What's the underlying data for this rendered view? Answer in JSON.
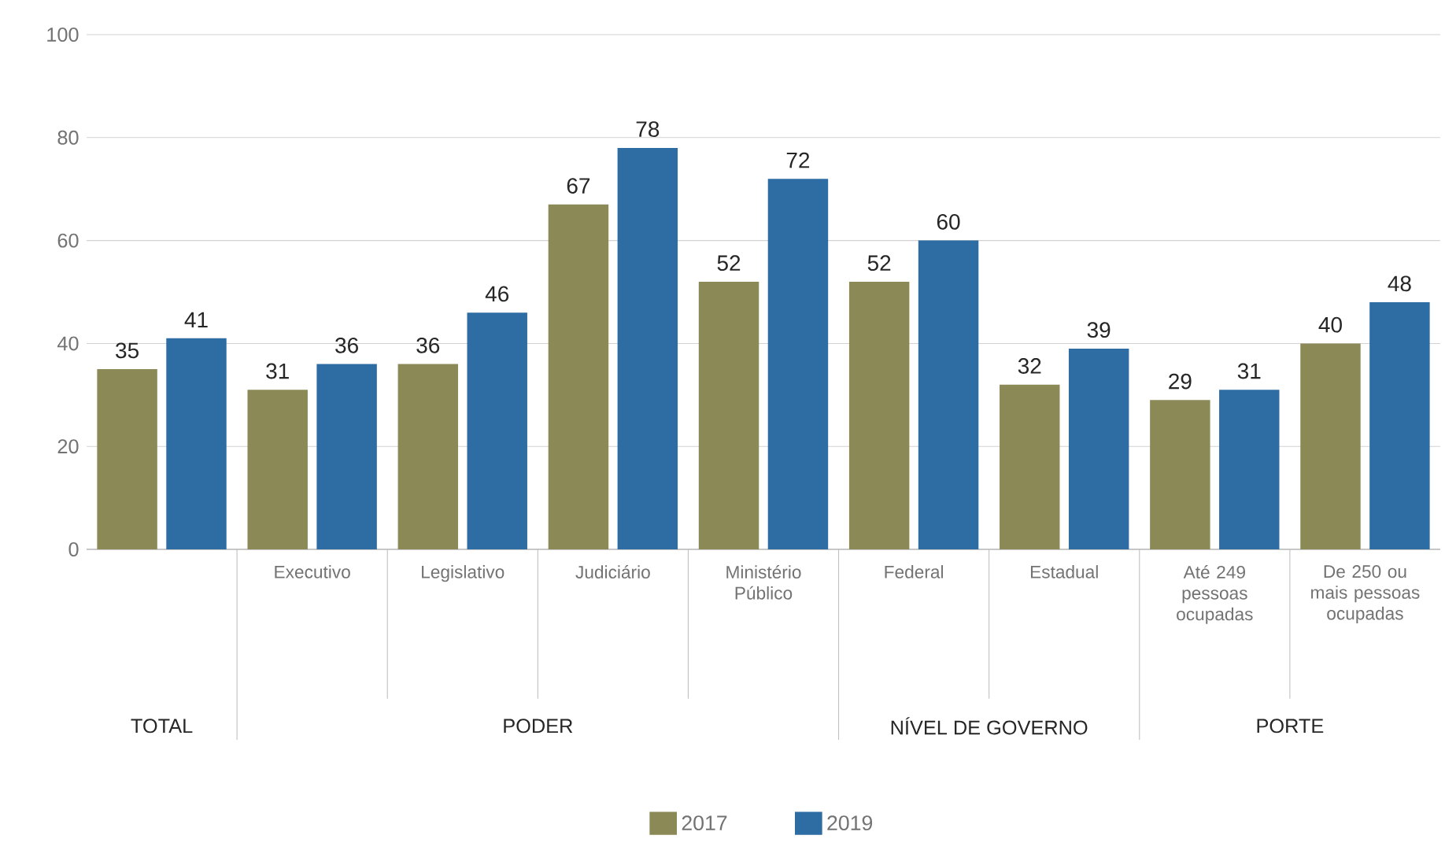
{
  "chart_data": {
    "type": "bar",
    "categories": [
      null,
      "Executivo",
      "Legislativo",
      "Judiciário",
      "Ministério Público",
      "Federal",
      "Estadual",
      "Até 249 pessoas ocupadas",
      "De 250 ou mais pessoas ocupadas"
    ],
    "series": [
      {
        "name": "2017",
        "color": "#8b8a57",
        "values": [
          35,
          31,
          36,
          67,
          52,
          52,
          32,
          29,
          40
        ]
      },
      {
        "name": "2019",
        "color": "#2e6da4",
        "values": [
          41,
          36,
          46,
          78,
          72,
          60,
          39,
          31,
          48
        ]
      }
    ],
    "annotations": [
      "TOTAL",
      "PODER",
      "NÍVEL DE GOVERNO",
      "PORTE"
    ],
    "ylim": [
      0,
      100
    ],
    "yticks": [
      0,
      20,
      40,
      60,
      80,
      100
    ],
    "grid": "y",
    "legend": "bottom",
    "data_labels": true
  }
}
